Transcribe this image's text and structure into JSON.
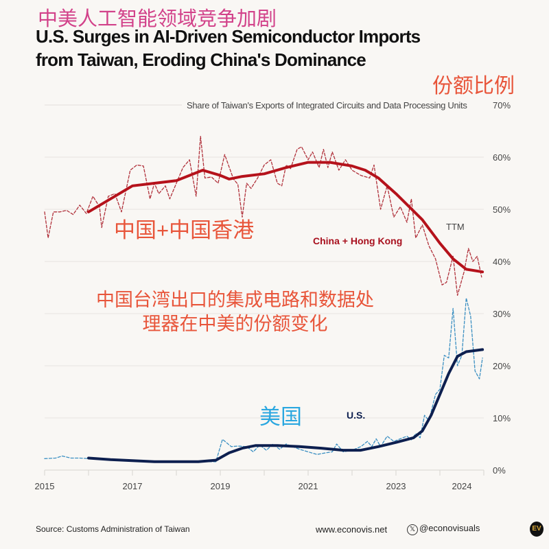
{
  "header": {
    "cn_title": "中美人工智能领域竞争加剧",
    "title_line1": "U.S. Surges in AI-Driven Semiconductor Imports",
    "title_line2": "from Taiwan, Eroding China's Dominance",
    "cn_share": "份额比例"
  },
  "annotations": {
    "cn_china": "中国+中国香港",
    "cn_desc_line1": "中国台湾出口的集成电路和数据处",
    "cn_desc_line2": "理器在中美的份额变化",
    "cn_us": "美国",
    "china_label": "China + Hong Kong",
    "ttm_label": "TTM",
    "us_label": "U.S."
  },
  "footer": {
    "source": "Source: Customs Administration of Taiwan",
    "site": "www.econovis.net",
    "handle": "@econovisuals",
    "logo": "EV",
    "x_icon": "x-logo-icon"
  },
  "colors": {
    "china": "#b5121b",
    "china_monthly": "#b0303a",
    "us": "#0d1f4f",
    "us_monthly": "#3a8fc2",
    "cn_title": "#d2428a",
    "annotation": "#e8553a",
    "cn_us": "#2aa7e0"
  },
  "chart_data": {
    "type": "line",
    "subtitle": "Share of Taiwan's Exports of Integrated Circuits and Data Processing Units",
    "xlim": [
      2015,
      2025
    ],
    "ylim": [
      0,
      70
    ],
    "y_ticks": [
      0,
      10,
      20,
      30,
      40,
      50,
      60,
      70
    ],
    "y_tick_labels": [
      "0%",
      "10%",
      "20%",
      "30%",
      "40%",
      "50%",
      "60%",
      "70%"
    ],
    "y_axis_position": "right",
    "x_tick_labels": [
      {
        "label": "2015",
        "x": 2015
      },
      {
        "label": "2017",
        "x": 2017
      },
      {
        "label": "2019",
        "x": 2019
      },
      {
        "label": "2021",
        "x": 2021
      },
      {
        "label": "2023",
        "x": 2023
      },
      {
        "label": "2024",
        "x": 2024.5
      }
    ],
    "grid": true,
    "series": [
      {
        "name": "China + Hong Kong",
        "style": "dashed",
        "color": "#b0303a",
        "x": [
          2015.0,
          2015.08,
          2015.2,
          2015.35,
          2015.5,
          2015.65,
          2015.8,
          2015.95,
          2016.1,
          2016.25,
          2016.3,
          2016.45,
          2016.6,
          2016.75,
          2016.95,
          2017.1,
          2017.25,
          2017.4,
          2017.5,
          2017.6,
          2017.75,
          2017.85,
          2018.0,
          2018.15,
          2018.3,
          2018.45,
          2018.55,
          2018.65,
          2018.8,
          2018.95,
          2019.1,
          2019.3,
          2019.4,
          2019.5,
          2019.6,
          2019.7,
          2019.85,
          2020.0,
          2020.15,
          2020.3,
          2020.4,
          2020.5,
          2020.6,
          2020.75,
          2020.85,
          2021.0,
          2021.1,
          2021.25,
          2021.35,
          2021.45,
          2021.55,
          2021.7,
          2021.85,
          2022.0,
          2022.2,
          2022.4,
          2022.5,
          2022.65,
          2022.8,
          2022.95,
          2023.1,
          2023.25,
          2023.35,
          2023.45,
          2023.6,
          2023.75,
          2023.9,
          2024.05,
          2024.15,
          2024.3,
          2024.4,
          2024.55,
          2024.65,
          2024.75,
          2024.85,
          2024.95
        ],
        "y": [
          49.5,
          44.5,
          49.5,
          49.5,
          49.8,
          49.0,
          50.8,
          49.2,
          52.5,
          50.5,
          46.5,
          52.5,
          53.0,
          49.5,
          57.5,
          58.5,
          58.3,
          52.0,
          55.0,
          53.0,
          54.5,
          52.0,
          55.0,
          58.0,
          59.5,
          52.5,
          64.0,
          56.0,
          56.2,
          55.0,
          60.5,
          55.8,
          54.8,
          48.5,
          55.0,
          54.0,
          56.0,
          58.5,
          59.5,
          55.0,
          54.5,
          58.5,
          57.8,
          61.5,
          62.0,
          59.5,
          61.0,
          58.0,
          61.5,
          58.0,
          61.0,
          57.5,
          59.5,
          57.5,
          56.5,
          56.0,
          58.5,
          50.0,
          54.5,
          48.5,
          50.5,
          47.5,
          52.0,
          44.5,
          47.0,
          43.0,
          40.5,
          35.5,
          36.0,
          41.0,
          33.5,
          38.0,
          42.5,
          40.0,
          41.0,
          37.0
        ]
      },
      {
        "name": "China + Hong Kong TTM",
        "style": "solid",
        "color": "#b5121b",
        "x": [
          2016.0,
          2016.5,
          2017.0,
          2017.5,
          2018.0,
          2018.3,
          2018.6,
          2019.0,
          2019.2,
          2019.5,
          2020.0,
          2020.5,
          2021.0,
          2021.5,
          2022.0,
          2022.3,
          2022.6,
          2023.0,
          2023.3,
          2023.6,
          2024.0,
          2024.3,
          2024.6,
          2024.97
        ],
        "y": [
          49.5,
          52.0,
          54.5,
          55.0,
          55.5,
          56.5,
          57.5,
          56.5,
          55.8,
          56.3,
          56.8,
          58.0,
          59.0,
          59.0,
          58.3,
          57.5,
          56.0,
          53.0,
          50.5,
          48.0,
          43.5,
          40.5,
          38.5,
          38.0
        ]
      },
      {
        "name": "U.S.",
        "style": "dashed",
        "color": "#3a8fc2",
        "x": [
          2015.0,
          2015.25,
          2015.4,
          2015.6,
          2015.8,
          2016.0,
          2016.5,
          2017.0,
          2017.5,
          2018.0,
          2018.5,
          2018.9,
          2019.05,
          2019.25,
          2019.4,
          2019.6,
          2019.75,
          2019.9,
          2020.05,
          2020.2,
          2020.35,
          2020.5,
          2020.65,
          2020.8,
          2021.0,
          2021.2,
          2021.4,
          2021.55,
          2021.65,
          2021.8,
          2022.0,
          2022.2,
          2022.35,
          2022.45,
          2022.55,
          2022.65,
          2022.8,
          2022.95,
          2023.1,
          2023.25,
          2023.35,
          2023.45,
          2023.55,
          2023.65,
          2023.75,
          2023.9,
          2024.0,
          2024.1,
          2024.2,
          2024.3,
          2024.4,
          2024.5,
          2024.6,
          2024.7,
          2024.8,
          2024.9,
          2024.97
        ],
        "y": [
          2.2,
          2.3,
          2.7,
          2.3,
          2.3,
          2.2,
          1.9,
          1.8,
          1.7,
          1.6,
          1.6,
          1.6,
          5.9,
          4.5,
          4.6,
          4.5,
          3.5,
          4.8,
          3.8,
          5.0,
          4.0,
          5.0,
          4.5,
          4.0,
          3.5,
          3.0,
          3.3,
          3.5,
          5.0,
          3.5,
          3.8,
          4.5,
          5.5,
          4.5,
          6.0,
          4.5,
          6.5,
          5.5,
          6.0,
          6.5,
          5.8,
          7.0,
          6.2,
          10.5,
          9.5,
          14.5,
          15.5,
          22.0,
          21.5,
          31.0,
          20.0,
          22.0,
          33.0,
          29.5,
          19.0,
          17.5,
          21.5
        ]
      },
      {
        "name": "U.S. TTM",
        "style": "solid",
        "color": "#0d1f4f",
        "x": [
          2016.0,
          2016.5,
          2017.0,
          2017.5,
          2018.0,
          2018.5,
          2018.9,
          2019.2,
          2019.5,
          2019.8,
          2020.3,
          2020.8,
          2021.3,
          2021.8,
          2022.2,
          2022.6,
          2023.0,
          2023.4,
          2023.6,
          2023.8,
          2024.0,
          2024.2,
          2024.4,
          2024.6,
          2024.97
        ],
        "y": [
          2.3,
          2.0,
          1.8,
          1.6,
          1.6,
          1.6,
          1.9,
          3.3,
          4.2,
          4.7,
          4.7,
          4.5,
          4.2,
          3.8,
          3.8,
          4.5,
          5.3,
          6.2,
          7.5,
          10.5,
          14.5,
          18.5,
          21.8,
          22.7,
          23.1
        ]
      }
    ]
  }
}
